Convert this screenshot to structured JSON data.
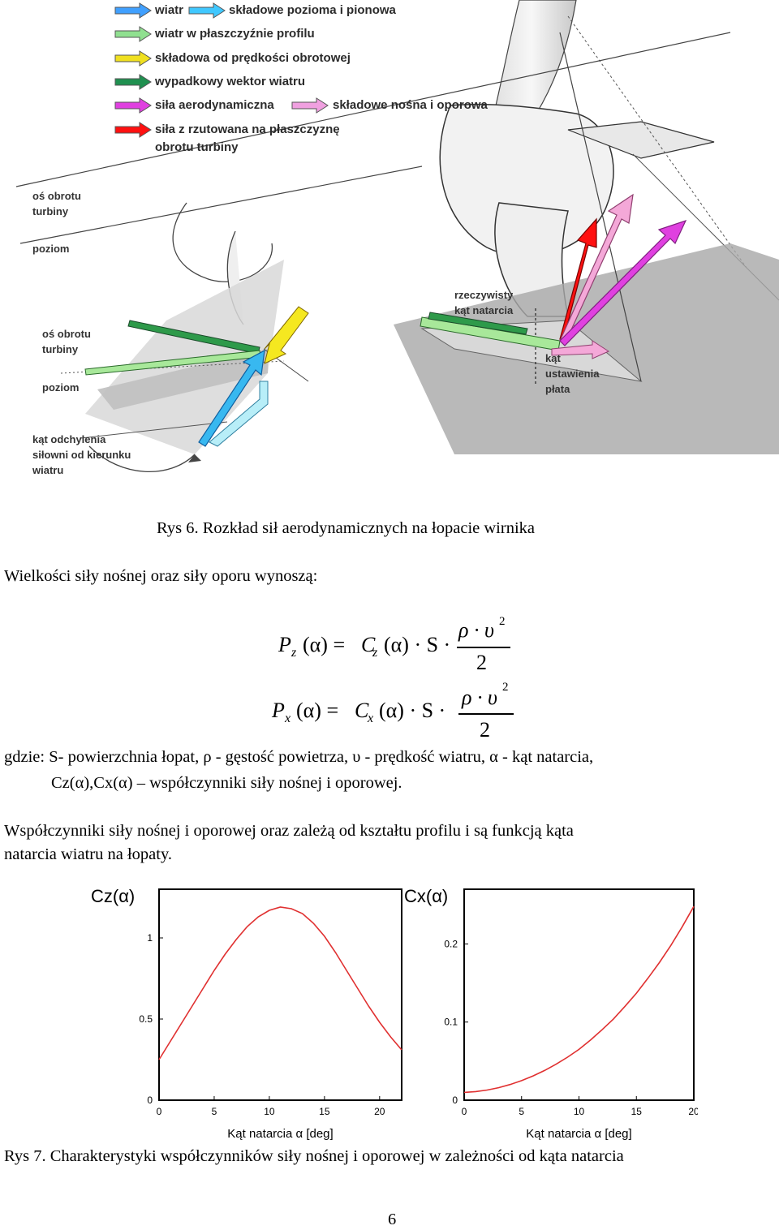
{
  "figure1": {
    "legend": [
      {
        "text": "wiatr",
        "color": "#40a0ff"
      },
      {
        "text": "składowe pozioma i pionowa",
        "color": "#40c8ff"
      },
      {
        "text": "wiatr w płaszczyźnie profilu",
        "color": "#90e090"
      },
      {
        "text": "składowa od prędkości obrotowej",
        "color": "#f0e020"
      },
      {
        "text": "wypadkowy wektor wiatru",
        "color": "#209050"
      },
      {
        "text": "siła aerodynamiczna",
        "color": "#e040e0"
      },
      {
        "text": "składowe nośna i oporowa",
        "color": "#f0a0e0"
      },
      {
        "text": "siła z rzutowana na płaszczyznę",
        "color": "#ff1010"
      },
      {
        "text": "obrotu turbiny",
        "color": ""
      }
    ],
    "labels": {
      "os_obrotu_1": "oś obrotu\nturbiny",
      "poziom_1": "poziom",
      "os_obrotu_2": "oś obrotu\nturbiny",
      "poziom_2": "poziom",
      "odchylenie": "kąt odchylenia\nsiłowni od kierunku\nwiatru",
      "natarcia": "rzeczywisty\nkąt natarcia",
      "ustawienia": "kąt\nustawienia\npłata"
    },
    "caption": "Rys 6. Rozkład sił aerodynamicznych  na łopacie wirnika"
  },
  "text": {
    "intro": "Wielkości siły nośnej oraz siły oporu wynoszą:",
    "gdzie_line1": "gdzie: S- powierzchnia łopat, ρ - gęstość powietrza, υ - prędkość wiatru, α - kąt natarcia,",
    "gdzie_line2": "Cz(α),Cx(α) – współczynniki  siły nośnej i oporowej.",
    "para_line1": "Współczynniki siły nośnej i oporowej  oraz  zależą od kształtu profilu i są funkcją kąta",
    "para_line2": "natarcia  wiatru na łopaty.",
    "page_number": "6"
  },
  "equations": {
    "eq1": {
      "lhs": "P",
      "sub": "z",
      "coef": "C",
      "frac_num": "ρ · υ",
      "frac_den": "2",
      "exp": "2"
    },
    "eq2": {
      "lhs": "P",
      "sub": "x",
      "coef": "C",
      "frac_num": "ρ · υ",
      "frac_den": "2",
      "exp": "2"
    }
  },
  "chart_data": [
    {
      "type": "line",
      "title": "Cz(α)",
      "xlabel": "Kąt natarcia α [deg]",
      "x_ticks": [
        "0",
        "5",
        "10",
        "15",
        "20"
      ],
      "y_ticks": [
        "0",
        "0.5",
        "1"
      ],
      "xlim": [
        0,
        22
      ],
      "ylim": [
        0,
        1.3
      ],
      "grid": false,
      "line_color": "#e03030",
      "series": [
        {
          "x": [
            0,
            1,
            2,
            3,
            4,
            5,
            6,
            7,
            8,
            9,
            10,
            11,
            12,
            13,
            14,
            15,
            16,
            17,
            18,
            19,
            20,
            21,
            22
          ],
          "y": [
            0.25,
            0.36,
            0.47,
            0.58,
            0.69,
            0.8,
            0.9,
            0.99,
            1.07,
            1.13,
            1.17,
            1.19,
            1.18,
            1.15,
            1.09,
            1.01,
            0.91,
            0.8,
            0.69,
            0.58,
            0.48,
            0.39,
            0.31
          ]
        }
      ]
    },
    {
      "type": "line",
      "title": "Cx(α)",
      "xlabel": "Kąt natarcia α [deg]",
      "x_ticks": [
        "0",
        "5",
        "10",
        "15",
        "20"
      ],
      "y_ticks": [
        "0",
        "0.1",
        "0.2"
      ],
      "xlim": [
        0,
        20
      ],
      "ylim": [
        0,
        0.27
      ],
      "grid": false,
      "line_color": "#e03030",
      "series": [
        {
          "x": [
            0,
            1,
            2,
            3,
            4,
            5,
            6,
            7,
            8,
            9,
            10,
            11,
            12,
            13,
            14,
            15,
            16,
            17,
            18,
            19,
            20
          ],
          "y": [
            0.01,
            0.011,
            0.013,
            0.016,
            0.02,
            0.025,
            0.031,
            0.038,
            0.046,
            0.055,
            0.065,
            0.077,
            0.09,
            0.104,
            0.12,
            0.137,
            0.156,
            0.176,
            0.198,
            0.222,
            0.248
          ]
        }
      ]
    }
  ],
  "figure2": {
    "caption": "Rys 7. Charakterystyki współczynników siły nośnej i oporowej w zależności od kąta natarcia"
  }
}
